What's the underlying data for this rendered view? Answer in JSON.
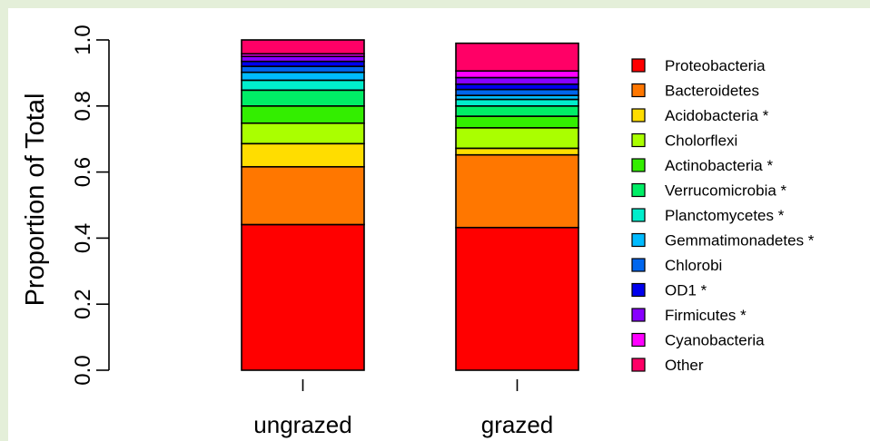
{
  "chart_data": {
    "type": "bar",
    "stacked": true,
    "title": "",
    "ylabel": "Proportion of Total",
    "xlabel": "",
    "ylim": [
      0,
      1
    ],
    "yticks": [
      0.0,
      0.2,
      0.4,
      0.6,
      0.8,
      1.0
    ],
    "ytick_labels": [
      "0.0",
      "0.2",
      "0.4",
      "0.6",
      "0.8",
      "1.0"
    ],
    "categories": [
      "ungrazed",
      "grazed"
    ],
    "grid": false,
    "legend_position": "right",
    "series": [
      {
        "name": "Proteobacteria",
        "color": "#ff0000",
        "values": [
          0.441,
          0.432
        ]
      },
      {
        "name": "Bacteroidetes",
        "color": "#ff7700",
        "values": [
          0.175,
          0.22
        ]
      },
      {
        "name": "Acidobacteria *",
        "color": "#ffdd00",
        "values": [
          0.07,
          0.02
        ]
      },
      {
        "name": "Cholorflexi",
        "color": "#aaff00",
        "values": [
          0.062,
          0.062
        ]
      },
      {
        "name": "Actinobacteria *",
        "color": "#33ee00",
        "values": [
          0.052,
          0.035
        ]
      },
      {
        "name": "Verrucomicrobia *",
        "color": "#00ee66",
        "values": [
          0.048,
          0.031
        ]
      },
      {
        "name": "Planctomycetes *",
        "color": "#00eecc",
        "values": [
          0.03,
          0.02
        ]
      },
      {
        "name": "Gemmatimonadetes *",
        "color": "#00bbff",
        "values": [
          0.024,
          0.012
        ]
      },
      {
        "name": "Chlorobi",
        "color": "#0066ee",
        "values": [
          0.018,
          0.018
        ]
      },
      {
        "name": "OD1 *",
        "color": "#0000ee",
        "values": [
          0.015,
          0.016
        ]
      },
      {
        "name": "Firmicutes *",
        "color": "#8800ff",
        "values": [
          0.015,
          0.02
        ]
      },
      {
        "name": "Cyanobacteria",
        "color": "#ff00ff",
        "values": [
          0.008,
          0.02
        ]
      },
      {
        "name": "Other",
        "color": "#ff0066",
        "values": [
          0.042,
          0.084
        ]
      }
    ]
  }
}
